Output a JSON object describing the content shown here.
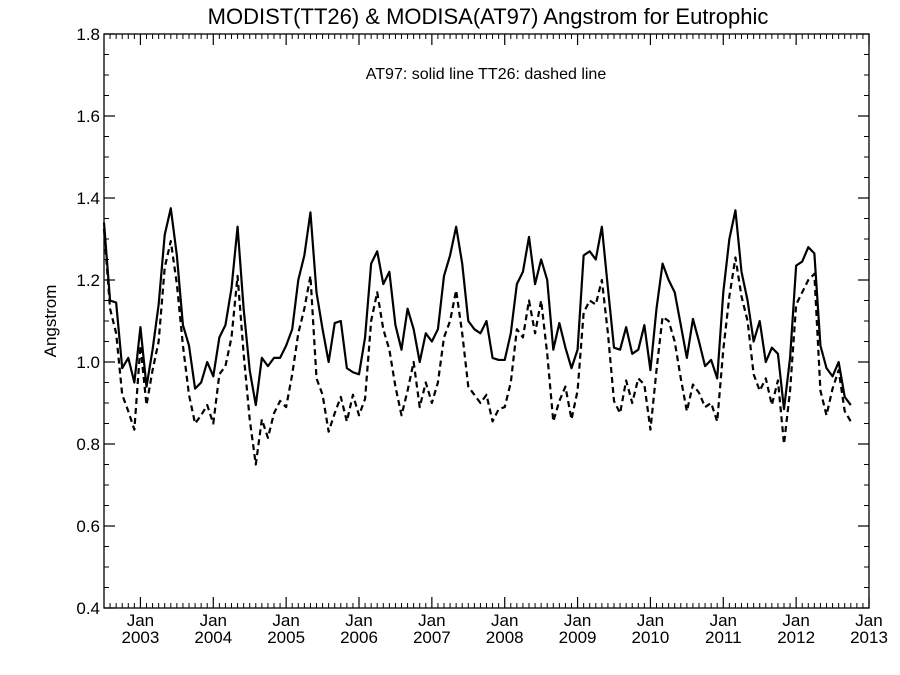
{
  "chart_data": {
    "type": "line",
    "title": "MODIST(TT26) & MODISA(AT97)  Angstrom for Eutrophic",
    "ylabel": "Angstrom",
    "xlabel": "",
    "annotation": "AT97: solid line   TT26: dashed line",
    "ylim": [
      0.4,
      1.8
    ],
    "yticks": [
      0.4,
      0.6,
      0.8,
      1.0,
      1.2,
      1.4,
      1.6,
      1.8
    ],
    "ytick_labels": [
      "0.4",
      "0.6",
      "0.8",
      "1.0",
      "1.2",
      "1.4",
      "1.6",
      "1.8"
    ],
    "xlim": [
      "2002-07",
      "2013-01"
    ],
    "xticks": [
      {
        "date": "2003-01",
        "month": "Jan",
        "year": "2003"
      },
      {
        "date": "2004-01",
        "month": "Jan",
        "year": "2004"
      },
      {
        "date": "2005-01",
        "month": "Jan",
        "year": "2005"
      },
      {
        "date": "2006-01",
        "month": "Jan",
        "year": "2006"
      },
      {
        "date": "2007-01",
        "month": "Jan",
        "year": "2007"
      },
      {
        "date": "2008-01",
        "month": "Jan",
        "year": "2008"
      },
      {
        "date": "2009-01",
        "month": "Jan",
        "year": "2009"
      },
      {
        "date": "2010-01",
        "month": "Jan",
        "year": "2010"
      },
      {
        "date": "2011-01",
        "month": "Jan",
        "year": "2011"
      },
      {
        "date": "2012-01",
        "month": "Jan",
        "year": "2012"
      },
      {
        "date": "2013-01",
        "month": "Jan",
        "year": "2013"
      }
    ],
    "grid": false,
    "series": [
      {
        "name": "AT97",
        "style": "solid",
        "color": "#000000",
        "points": [
          [
            "2002-07",
            1.34
          ],
          [
            "2002-08",
            1.15
          ],
          [
            "2002-09",
            1.145
          ],
          [
            "2002-10",
            0.985
          ],
          [
            "2002-11",
            1.01
          ],
          [
            "2002-12",
            0.95
          ],
          [
            "2003-01",
            1.085
          ],
          [
            "2003-02",
            0.94
          ],
          [
            "2003-03",
            1.03
          ],
          [
            "2003-04",
            1.14
          ],
          [
            "2003-05",
            1.31
          ],
          [
            "2003-06",
            1.375
          ],
          [
            "2003-07",
            1.26
          ],
          [
            "2003-08",
            1.09
          ],
          [
            "2003-09",
            1.04
          ],
          [
            "2003-10",
            0.935
          ],
          [
            "2003-11",
            0.95
          ],
          [
            "2003-12",
            1.0
          ],
          [
            "2004-01",
            0.965
          ],
          [
            "2004-02",
            1.06
          ],
          [
            "2004-03",
            1.09
          ],
          [
            "2004-04",
            1.18
          ],
          [
            "2004-05",
            1.33
          ],
          [
            "2004-06",
            1.13
          ],
          [
            "2004-07",
            0.98
          ],
          [
            "2004-08",
            0.895
          ],
          [
            "2004-09",
            1.01
          ],
          [
            "2004-10",
            0.99
          ],
          [
            "2004-11",
            1.01
          ],
          [
            "2004-12",
            1.01
          ],
          [
            "2005-01",
            1.04
          ],
          [
            "2005-02",
            1.08
          ],
          [
            "2005-03",
            1.2
          ],
          [
            "2005-04",
            1.26
          ],
          [
            "2005-05",
            1.365
          ],
          [
            "2005-06",
            1.17
          ],
          [
            "2005-07",
            1.08
          ],
          [
            "2005-08",
            1.0
          ],
          [
            "2005-09",
            1.095
          ],
          [
            "2005-10",
            1.1
          ],
          [
            "2005-11",
            0.985
          ],
          [
            "2005-12",
            0.975
          ],
          [
            "2006-01",
            0.97
          ],
          [
            "2006-02",
            1.06
          ],
          [
            "2006-03",
            1.24
          ],
          [
            "2006-04",
            1.27
          ],
          [
            "2006-05",
            1.19
          ],
          [
            "2006-06",
            1.22
          ],
          [
            "2006-07",
            1.09
          ],
          [
            "2006-08",
            1.03
          ],
          [
            "2006-09",
            1.13
          ],
          [
            "2006-10",
            1.08
          ],
          [
            "2006-11",
            1.0
          ],
          [
            "2006-12",
            1.07
          ],
          [
            "2007-01",
            1.05
          ],
          [
            "2007-02",
            1.08
          ],
          [
            "2007-03",
            1.21
          ],
          [
            "2007-04",
            1.26
          ],
          [
            "2007-05",
            1.33
          ],
          [
            "2007-06",
            1.24
          ],
          [
            "2007-07",
            1.1
          ],
          [
            "2007-08",
            1.08
          ],
          [
            "2007-09",
            1.07
          ],
          [
            "2007-10",
            1.1
          ],
          [
            "2007-11",
            1.01
          ],
          [
            "2007-12",
            1.005
          ],
          [
            "2008-01",
            1.005
          ],
          [
            "2008-02",
            1.07
          ],
          [
            "2008-03",
            1.19
          ],
          [
            "2008-04",
            1.22
          ],
          [
            "2008-05",
            1.305
          ],
          [
            "2008-06",
            1.19
          ],
          [
            "2008-07",
            1.25
          ],
          [
            "2008-08",
            1.2
          ],
          [
            "2008-09",
            1.03
          ],
          [
            "2008-10",
            1.095
          ],
          [
            "2008-11",
            1.035
          ],
          [
            "2008-12",
            0.985
          ],
          [
            "2009-01",
            1.03
          ],
          [
            "2009-02",
            1.26
          ],
          [
            "2009-03",
            1.27
          ],
          [
            "2009-04",
            1.25
          ],
          [
            "2009-05",
            1.33
          ],
          [
            "2009-06",
            1.18
          ],
          [
            "2009-07",
            1.035
          ],
          [
            "2009-08",
            1.03
          ],
          [
            "2009-09",
            1.085
          ],
          [
            "2009-10",
            1.02
          ],
          [
            "2009-11",
            1.03
          ],
          [
            "2009-12",
            1.09
          ],
          [
            "2010-01",
            0.98
          ],
          [
            "2010-02",
            1.13
          ],
          [
            "2010-03",
            1.24
          ],
          [
            "2010-04",
            1.2
          ],
          [
            "2010-05",
            1.17
          ],
          [
            "2010-06",
            1.09
          ],
          [
            "2010-07",
            1.01
          ],
          [
            "2010-08",
            1.105
          ],
          [
            "2010-09",
            1.05
          ],
          [
            "2010-10",
            0.99
          ],
          [
            "2010-11",
            1.005
          ],
          [
            "2010-12",
            0.96
          ],
          [
            "2011-01",
            1.17
          ],
          [
            "2011-02",
            1.3
          ],
          [
            "2011-03",
            1.37
          ],
          [
            "2011-04",
            1.22
          ],
          [
            "2011-05",
            1.15
          ],
          [
            "2011-06",
            1.05
          ],
          [
            "2011-07",
            1.1
          ],
          [
            "2011-08",
            1.0
          ],
          [
            "2011-09",
            1.035
          ],
          [
            "2011-10",
            1.02
          ],
          [
            "2011-11",
            0.885
          ],
          [
            "2011-12",
            1.01
          ],
          [
            "2012-01",
            1.235
          ],
          [
            "2012-02",
            1.245
          ],
          [
            "2012-03",
            1.28
          ],
          [
            "2012-04",
            1.265
          ],
          [
            "2012-05",
            1.04
          ],
          [
            "2012-06",
            0.985
          ],
          [
            "2012-07",
            0.965
          ],
          [
            "2012-08",
            1.0
          ],
          [
            "2012-09",
            0.915
          ],
          [
            "2012-10",
            0.895
          ]
        ]
      },
      {
        "name": "TT26",
        "style": "dashed",
        "color": "#000000",
        "points": [
          [
            "2002-07",
            1.325
          ],
          [
            "2002-08",
            1.13
          ],
          [
            "2002-09",
            1.07
          ],
          [
            "2002-10",
            0.92
          ],
          [
            "2002-11",
            0.88
          ],
          [
            "2002-12",
            0.835
          ],
          [
            "2003-01",
            1.04
          ],
          [
            "2003-02",
            0.895
          ],
          [
            "2003-03",
            0.98
          ],
          [
            "2003-04",
            1.05
          ],
          [
            "2003-05",
            1.23
          ],
          [
            "2003-06",
            1.295
          ],
          [
            "2003-07",
            1.19
          ],
          [
            "2003-08",
            1.04
          ],
          [
            "2003-09",
            0.92
          ],
          [
            "2003-10",
            0.85
          ],
          [
            "2003-11",
            0.87
          ],
          [
            "2003-12",
            0.895
          ],
          [
            "2004-01",
            0.85
          ],
          [
            "2004-02",
            0.97
          ],
          [
            "2004-03",
            0.99
          ],
          [
            "2004-04",
            1.06
          ],
          [
            "2004-05",
            1.21
          ],
          [
            "2004-06",
            1.02
          ],
          [
            "2004-07",
            0.86
          ],
          [
            "2004-08",
            0.75
          ],
          [
            "2004-09",
            0.86
          ],
          [
            "2004-10",
            0.815
          ],
          [
            "2004-11",
            0.875
          ],
          [
            "2004-12",
            0.905
          ],
          [
            "2005-01",
            0.89
          ],
          [
            "2005-02",
            0.97
          ],
          [
            "2005-03",
            1.07
          ],
          [
            "2005-04",
            1.13
          ],
          [
            "2005-05",
            1.21
          ],
          [
            "2005-06",
            0.96
          ],
          [
            "2005-07",
            0.92
          ],
          [
            "2005-08",
            0.83
          ],
          [
            "2005-09",
            0.875
          ],
          [
            "2005-10",
            0.915
          ],
          [
            "2005-11",
            0.855
          ],
          [
            "2005-12",
            0.92
          ],
          [
            "2006-01",
            0.87
          ],
          [
            "2006-02",
            0.91
          ],
          [
            "2006-03",
            1.1
          ],
          [
            "2006-04",
            1.17
          ],
          [
            "2006-05",
            1.08
          ],
          [
            "2006-06",
            1.03
          ],
          [
            "2006-07",
            0.94
          ],
          [
            "2006-08",
            0.87
          ],
          [
            "2006-09",
            0.93
          ],
          [
            "2006-10",
            1.0
          ],
          [
            "2006-11",
            0.89
          ],
          [
            "2006-12",
            0.95
          ],
          [
            "2007-01",
            0.9
          ],
          [
            "2007-02",
            0.95
          ],
          [
            "2007-03",
            1.06
          ],
          [
            "2007-04",
            1.1
          ],
          [
            "2007-05",
            1.175
          ],
          [
            "2007-06",
            1.07
          ],
          [
            "2007-07",
            0.94
          ],
          [
            "2007-08",
            0.92
          ],
          [
            "2007-09",
            0.9
          ],
          [
            "2007-10",
            0.92
          ],
          [
            "2007-11",
            0.855
          ],
          [
            "2007-12",
            0.885
          ],
          [
            "2008-01",
            0.89
          ],
          [
            "2008-02",
            0.95
          ],
          [
            "2008-03",
            1.08
          ],
          [
            "2008-04",
            1.06
          ],
          [
            "2008-05",
            1.15
          ],
          [
            "2008-06",
            1.07
          ],
          [
            "2008-07",
            1.15
          ],
          [
            "2008-08",
            1.02
          ],
          [
            "2008-09",
            0.855
          ],
          [
            "2008-10",
            0.905
          ],
          [
            "2008-11",
            0.94
          ],
          [
            "2008-12",
            0.86
          ],
          [
            "2009-01",
            0.93
          ],
          [
            "2009-02",
            1.12
          ],
          [
            "2009-03",
            1.15
          ],
          [
            "2009-04",
            1.14
          ],
          [
            "2009-05",
            1.2
          ],
          [
            "2009-06",
            1.07
          ],
          [
            "2009-07",
            0.905
          ],
          [
            "2009-08",
            0.875
          ],
          [
            "2009-09",
            0.955
          ],
          [
            "2009-10",
            0.9
          ],
          [
            "2009-11",
            0.96
          ],
          [
            "2009-12",
            0.945
          ],
          [
            "2010-01",
            0.835
          ],
          [
            "2010-02",
            0.98
          ],
          [
            "2010-03",
            1.11
          ],
          [
            "2010-04",
            1.1
          ],
          [
            "2010-05",
            1.05
          ],
          [
            "2010-06",
            0.96
          ],
          [
            "2010-07",
            0.88
          ],
          [
            "2010-08",
            0.945
          ],
          [
            "2010-09",
            0.925
          ],
          [
            "2010-10",
            0.89
          ],
          [
            "2010-11",
            0.9
          ],
          [
            "2010-12",
            0.855
          ],
          [
            "2011-01",
            1.03
          ],
          [
            "2011-02",
            1.16
          ],
          [
            "2011-03",
            1.255
          ],
          [
            "2011-04",
            1.16
          ],
          [
            "2011-05",
            1.1
          ],
          [
            "2011-06",
            0.97
          ],
          [
            "2011-07",
            0.93
          ],
          [
            "2011-08",
            0.96
          ],
          [
            "2011-09",
            0.895
          ],
          [
            "2011-10",
            0.955
          ],
          [
            "2011-11",
            0.8
          ],
          [
            "2011-12",
            0.93
          ],
          [
            "2012-01",
            1.14
          ],
          [
            "2012-02",
            1.17
          ],
          [
            "2012-03",
            1.2
          ],
          [
            "2012-04",
            1.215
          ],
          [
            "2012-05",
            0.93
          ],
          [
            "2012-06",
            0.87
          ],
          [
            "2012-07",
            0.935
          ],
          [
            "2012-08",
            0.98
          ],
          [
            "2012-09",
            0.88
          ],
          [
            "2012-10",
            0.855
          ]
        ]
      }
    ]
  }
}
